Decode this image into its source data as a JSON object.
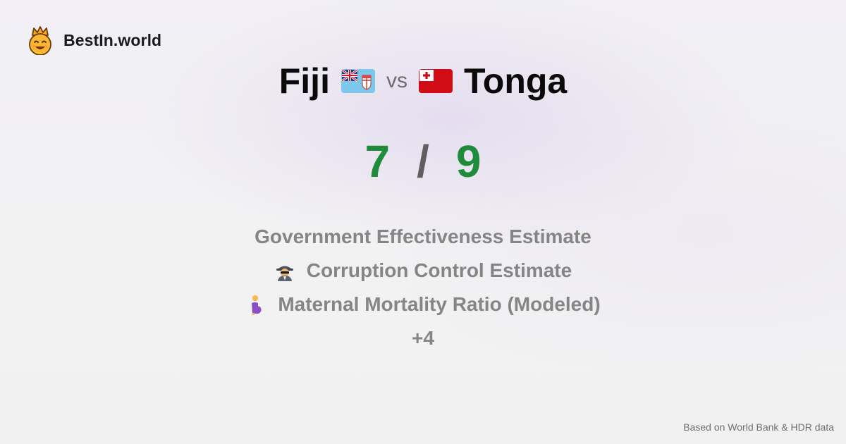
{
  "brand": {
    "name": "BestIn.world",
    "icon": "crown-smiley-icon"
  },
  "comparison": {
    "left_country": "Fiji",
    "left_flag": "fiji-flag-icon",
    "vs_label": "vs",
    "right_country": "Tonga",
    "right_flag": "tonga-flag-icon"
  },
  "score": {
    "left": "7",
    "separator": "/",
    "right": "9"
  },
  "metrics": [
    {
      "label": "Government Effectiveness Estimate",
      "icon": ""
    },
    {
      "label": "Corruption Control Estimate",
      "icon": "detective-icon"
    },
    {
      "label": "Maternal Mortality Ratio (Modeled)",
      "icon": "pregnant-woman-icon"
    }
  ],
  "more_label": "+4",
  "footer": {
    "source": "Based on World Bank & HDR data"
  },
  "colors": {
    "score": "#1f8c3b",
    "metric_text": "#858585",
    "title": "#0a0a0a"
  }
}
